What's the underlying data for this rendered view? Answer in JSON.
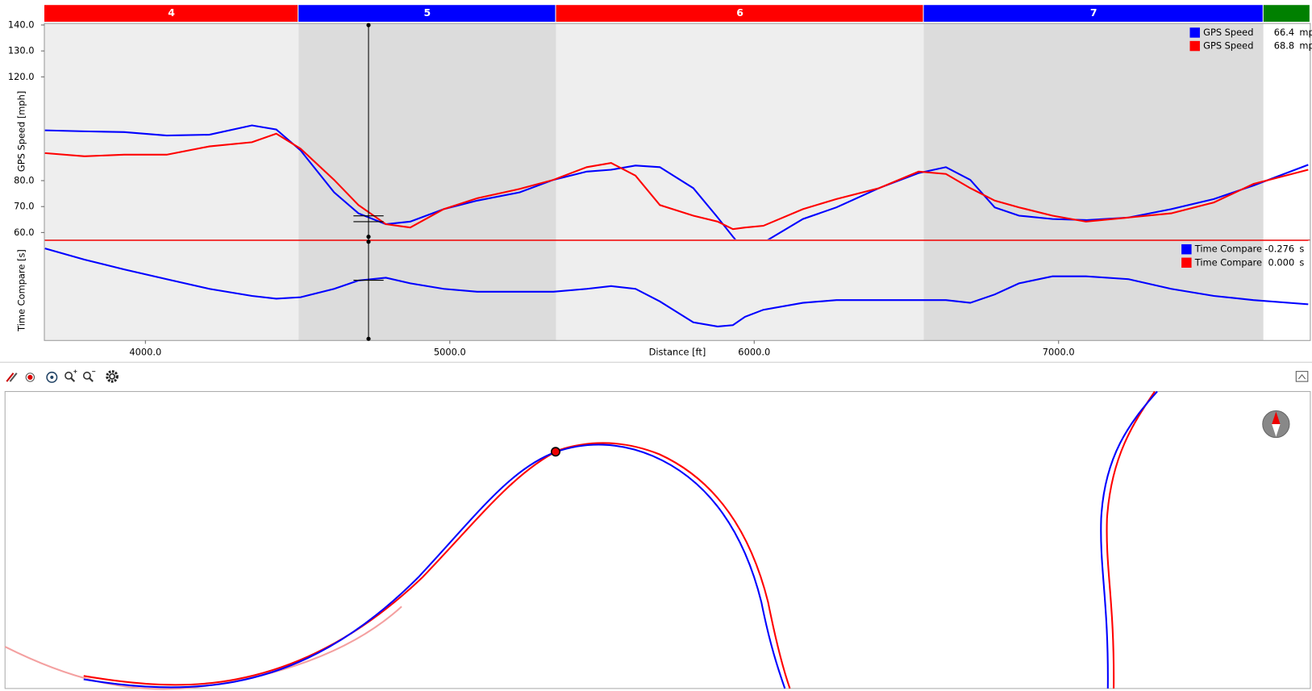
{
  "sectors": [
    {
      "label": "4",
      "start": 3668,
      "end": 4503,
      "color": "#ff0000"
    },
    {
      "label": "5",
      "start": 4503,
      "end": 5349,
      "color": "#0000ff"
    },
    {
      "label": "6",
      "start": 5349,
      "end": 6557,
      "color": "#ff0000"
    },
    {
      "label": "7",
      "start": 6557,
      "end": 7673,
      "color": "#0000ff"
    },
    {
      "label": null,
      "start": 7673,
      "end": 7827,
      "color": "#008000"
    }
  ],
  "cursor": 4733,
  "chart_data": [
    {
      "type": "line",
      "ylabel": "GPS Speed [mph]",
      "legend": "upper right",
      "x": [
        3670,
        3800,
        3930,
        4070,
        4210,
        4350,
        4430,
        4510,
        4620,
        4700,
        4790,
        4870,
        4980,
        5090,
        5230,
        5340,
        5450,
        5530,
        5610,
        5690,
        5800,
        5880,
        5930,
        5970,
        6030,
        6160,
        6270,
        6410,
        6540,
        6630,
        6710,
        6790,
        6870,
        6980,
        7090,
        7230,
        7370,
        7510,
        7640,
        7820
      ],
      "xlim": [
        3668,
        7827
      ],
      "ylim": [
        57.4,
        140.6
      ],
      "yticks": [
        {
          "value": 60,
          "label": "60.0"
        },
        {
          "value": 70,
          "label": "70.0"
        },
        {
          "value": 80,
          "label": "80.0"
        },
        {
          "value": 120,
          "label": "120.0"
        },
        {
          "value": 130,
          "label": "130.0"
        },
        {
          "value": 140,
          "label": "140.0"
        }
      ],
      "series": [
        {
          "name": "GPS Speed",
          "color": "#0000ff",
          "readout": 66.4,
          "unit": "mph",
          "values": [
            99.4,
            99.0,
            98.7,
            97.4,
            97.7,
            101.3,
            99.7,
            91.6,
            75.5,
            67.4,
            63.2,
            64.2,
            69.0,
            72.3,
            75.5,
            80.3,
            83.5,
            84.2,
            85.8,
            85.2,
            77.1,
            65.8,
            58.4,
            52.9,
            56.1,
            65.2,
            69.7,
            77.1,
            82.9,
            85.2,
            80.3,
            69.7,
            66.5,
            65.2,
            64.8,
            65.8,
            69.0,
            72.9,
            78.1,
            86.1
          ]
        },
        {
          "name": "GPS Speed",
          "color": "#ff0000",
          "readout": 68.8,
          "unit": "mph",
          "values": [
            90.6,
            89.4,
            90.0,
            90.0,
            93.2,
            94.8,
            98.1,
            92.3,
            80.3,
            70.6,
            63.2,
            61.9,
            69.0,
            73.2,
            76.8,
            80.3,
            85.2,
            86.8,
            81.9,
            70.6,
            66.5,
            64.2,
            61.3,
            61.9,
            62.6,
            69.0,
            72.9,
            77.1,
            83.5,
            82.6,
            77.1,
            72.3,
            69.7,
            66.5,
            64.2,
            65.8,
            67.4,
            71.6,
            78.7,
            84.2
          ]
        }
      ]
    },
    {
      "type": "line",
      "ylabel": "Time Compare [s]",
      "legend": "upper right",
      "xlabel": "Distance [ft]",
      "x": [
        3670,
        3800,
        3930,
        4070,
        4210,
        4350,
        4430,
        4510,
        4620,
        4700,
        4790,
        4870,
        4980,
        5090,
        5230,
        5340,
        5450,
        5530,
        5610,
        5690,
        5800,
        5880,
        5930,
        5970,
        6030,
        6160,
        6270,
        6410,
        6540,
        6630,
        6710,
        6790,
        6870,
        6980,
        7090,
        7230,
        7370,
        7510,
        7640,
        7820
      ],
      "xlim": [
        3668,
        7827
      ],
      "xticks": [
        {
          "value": 4000,
          "label": "4000.0"
        },
        {
          "value": 5000,
          "label": "5000.0"
        },
        {
          "value": 6000,
          "label": "6000.0"
        },
        {
          "value": 7000,
          "label": "7000.0"
        }
      ],
      "ylim": [
        -0.72,
        0
      ],
      "series": [
        {
          "name": "Time Compare",
          "color": "#0000ff",
          "readout": -0.276,
          "unit": "s",
          "values": [
            -0.06,
            -0.14,
            -0.21,
            -0.28,
            -0.35,
            -0.4,
            -0.42,
            -0.41,
            -0.35,
            -0.29,
            -0.27,
            -0.31,
            -0.35,
            -0.37,
            -0.37,
            -0.37,
            -0.35,
            -0.33,
            -0.35,
            -0.44,
            -0.59,
            -0.62,
            -0.61,
            -0.55,
            -0.5,
            -0.45,
            -0.43,
            -0.43,
            -0.43,
            -0.43,
            -0.45,
            -0.39,
            -0.31,
            -0.26,
            -0.26,
            -0.28,
            -0.35,
            -0.4,
            -0.43,
            -0.46
          ]
        },
        {
          "name": "Time Compare",
          "color": "#ff0000",
          "readout": {
            "value": 0,
            "label": "0.000"
          },
          "unit": "s",
          "values": [
            0,
            0,
            0,
            0,
            0,
            0,
            0,
            0,
            0,
            0,
            0,
            0,
            0,
            0,
            0,
            0,
            0,
            0,
            0,
            0,
            0,
            0,
            0,
            0,
            0,
            0,
            0,
            0,
            0,
            0,
            0,
            0,
            0,
            0,
            0,
            0,
            0,
            0,
            0,
            0
          ]
        }
      ]
    }
  ]
}
